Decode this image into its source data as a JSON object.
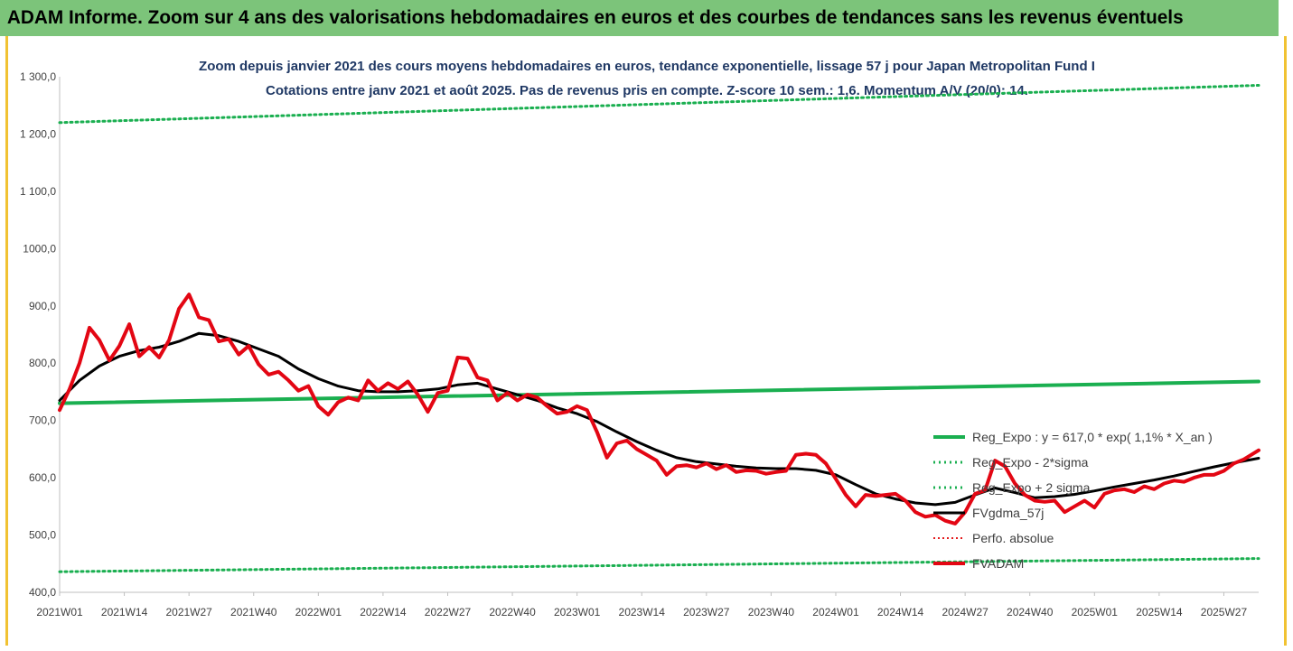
{
  "header": {
    "title": "ADAM Informe. Zoom sur 4 ans des valorisations hebdomadaires en euros et des courbes de tendances sans les revenus éventuels"
  },
  "chart_data": {
    "type": "line",
    "subtitle_line1": "Zoom depuis janvier 2021 des cours moyens hebdomadaires en euros, tendance exponentielle, lissage 57 j pour Japan Metropolitan Fund I",
    "subtitle_line2": "Cotations entre janv 2021 et août 2025.  Pas de revenus pris en compte. Z-score 10 sem.: 1,6. Momentum A/V (20/0): 14.",
    "ylim": [
      400,
      1300
    ],
    "y_ticks": [
      "400,0",
      "500,0",
      "600,0",
      "700,0",
      "800,0",
      "900,0",
      "1000,0",
      "1 100,0",
      "1 200,0",
      "1 300,0"
    ],
    "x_ticks": [
      "2021W01",
      "2021W14",
      "2021W27",
      "2021W40",
      "2022W01",
      "2022W14",
      "2022W27",
      "2022W40",
      "2023W01",
      "2023W14",
      "2023W27",
      "2023W40",
      "2024W01",
      "2024W14",
      "2024W27",
      "2024W40",
      "2025W01",
      "2025W14",
      "2025W27"
    ],
    "x_range_weeks": [
      0,
      241
    ],
    "legend_position": "bottom-right",
    "grid": false,
    "colors": {
      "reg_expo": "#1aaf50",
      "sigma": "#1aaf50",
      "vgdma": "#000000",
      "perfo": "#e31a1c",
      "fvadam": "#e30613"
    },
    "series": [
      {
        "name": "Reg_Expo : y = 617,0 * exp( 1,1% *  X_an )",
        "style": "solid",
        "x": [
          0,
          241
        ],
        "values": [
          730,
          768
        ]
      },
      {
        "name": "Reg_Expo - 2*sigma",
        "style": "dotted",
        "x": [
          0,
          241
        ],
        "values": [
          436,
          459
        ]
      },
      {
        "name": "Reg_Expo + 2 sigma",
        "style": "dotted",
        "x": [
          0,
          241
        ],
        "values": [
          1220,
          1285
        ]
      },
      {
        "name": "FVgdma_57j",
        "style": "solid",
        "x": [
          0,
          4,
          8,
          12,
          16,
          20,
          24,
          28,
          32,
          36,
          40,
          44,
          48,
          52,
          56,
          60,
          64,
          68,
          72,
          76,
          80,
          84,
          88,
          92,
          96,
          100,
          104,
          108,
          112,
          116,
          120,
          124,
          128,
          132,
          136,
          140,
          144,
          148,
          152,
          156,
          160,
          164,
          168,
          172,
          176,
          180,
          184,
          188,
          192,
          196,
          200,
          204,
          208,
          212,
          216,
          220,
          224,
          228,
          232,
          236,
          241
        ],
        "values": [
          735,
          770,
          795,
          812,
          822,
          828,
          838,
          852,
          848,
          838,
          825,
          812,
          790,
          773,
          760,
          752,
          750,
          750,
          752,
          755,
          762,
          765,
          755,
          745,
          735,
          722,
          712,
          698,
          680,
          663,
          648,
          635,
          628,
          624,
          620,
          617,
          616,
          616,
          613,
          605,
          588,
          572,
          563,
          556,
          553,
          557,
          570,
          582,
          574,
          565,
          567,
          571,
          577,
          584,
          590,
          596,
          603,
          611,
          619,
          626,
          634
        ]
      },
      {
        "name": "Perfo. absolue",
        "style": "dotted",
        "x": [],
        "values": []
      },
      {
        "name": "FVADAM",
        "style": "solid",
        "x": [
          0,
          2,
          4,
          6,
          8,
          10,
          12,
          14,
          16,
          18,
          20,
          22,
          24,
          26,
          28,
          30,
          32,
          34,
          36,
          38,
          40,
          42,
          44,
          46,
          48,
          50,
          52,
          54,
          56,
          58,
          60,
          62,
          64,
          66,
          68,
          70,
          72,
          74,
          76,
          78,
          80,
          82,
          84,
          86,
          88,
          90,
          92,
          94,
          96,
          98,
          100,
          102,
          104,
          106,
          108,
          110,
          112,
          114,
          116,
          118,
          120,
          122,
          124,
          126,
          128,
          130,
          132,
          134,
          136,
          138,
          140,
          142,
          144,
          146,
          148,
          150,
          152,
          154,
          156,
          158,
          160,
          162,
          164,
          166,
          168,
          170,
          172,
          174,
          176,
          178,
          180,
          182,
          184,
          186,
          188,
          190,
          192,
          194,
          196,
          198,
          200,
          202,
          204,
          206,
          208,
          210,
          212,
          214,
          216,
          218,
          220,
          222,
          224,
          226,
          228,
          230,
          232,
          234,
          236,
          238,
          241
        ],
        "values": [
          718,
          755,
          800,
          862,
          840,
          805,
          830,
          868,
          812,
          828,
          810,
          840,
          895,
          920,
          880,
          875,
          838,
          842,
          815,
          830,
          798,
          780,
          785,
          770,
          752,
          760,
          725,
          710,
          732,
          740,
          735,
          770,
          752,
          765,
          755,
          768,
          745,
          715,
          748,
          752,
          810,
          808,
          775,
          770,
          735,
          748,
          735,
          745,
          740,
          725,
          712,
          715,
          725,
          718,
          680,
          635,
          660,
          665,
          650,
          640,
          630,
          605,
          620,
          622,
          618,
          625,
          615,
          622,
          610,
          613,
          612,
          607,
          610,
          612,
          640,
          642,
          640,
          625,
          598,
          570,
          550,
          570,
          568,
          570,
          572,
          560,
          540,
          532,
          535,
          525,
          520,
          540,
          572,
          578,
          630,
          620,
          590,
          570,
          560,
          558,
          560,
          540,
          550,
          560,
          548,
          572,
          578,
          580,
          575,
          585,
          580,
          590,
          595,
          593,
          600,
          605,
          605,
          612,
          625,
          632,
          648
        ]
      }
    ]
  }
}
